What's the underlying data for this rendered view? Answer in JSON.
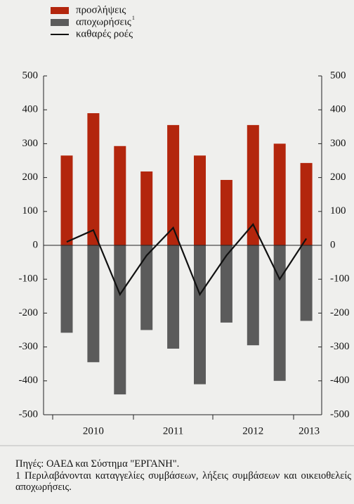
{
  "chart_data": {
    "type": "bar_line",
    "categories": [
      null,
      "2010",
      null,
      null,
      "2011",
      null,
      null,
      "2012",
      null,
      "2013"
    ],
    "series": [
      {
        "name": "προσλήψεις",
        "color": "#b3260d",
        "kind": "bar",
        "values": [
          265,
          390,
          293,
          218,
          355,
          265,
          193,
          355,
          300,
          243
        ]
      },
      {
        "name": "αποχωρήσεις",
        "footnote_mark": "1",
        "color": "#5b5b5b",
        "kind": "bar",
        "values": [
          -258,
          -345,
          -440,
          -250,
          -305,
          -410,
          -228,
          -295,
          -400,
          -223
        ]
      },
      {
        "name": "καθαρές ροές",
        "color": "#111111",
        "kind": "line",
        "values": [
          10,
          45,
          -145,
          -30,
          52,
          -145,
          -30,
          62,
          -100,
          20
        ]
      }
    ],
    "ylim": [
      -500,
      500
    ],
    "yticks": [
      -500,
      -400,
      -300,
      -200,
      -100,
      0,
      100,
      200,
      300,
      400,
      500
    ]
  },
  "notes": {
    "source": "Πηγές: ΟΑΕΔ και Σύστημα \"ΕΡΓΑΝΗ\".",
    "footnote": "1 Περιλαβάνονται καταγγελίες συμβάσεων, λήξεις συμβάσεων και οικειοθελείς αποχωρήσεις."
  }
}
